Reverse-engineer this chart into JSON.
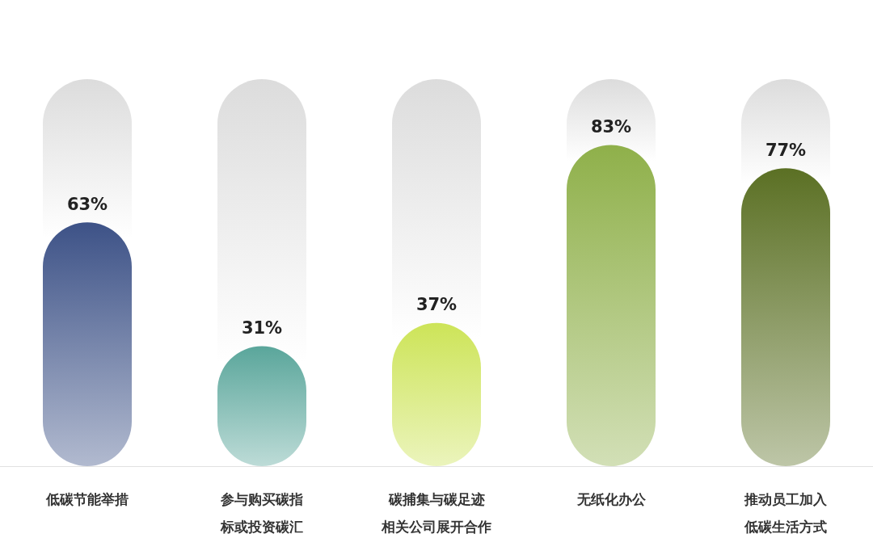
{
  "chart_data": {
    "type": "bar",
    "categories": [
      "低碳节能举措",
      "参与购买碳指标或投资碳汇",
      "碳捕集与碳足迹相关公司展开合作",
      "无纸化办公",
      "推动员工加入低碳生活方式"
    ],
    "values": [
      63,
      31,
      37,
      83,
      77
    ],
    "value_labels": [
      "63%",
      "31%",
      "37%",
      "83%",
      "77%"
    ],
    "colors": [
      "#3d5287",
      "#5aa69b",
      "#cde458",
      "#8fb04a",
      "#5b7024"
    ]
  }
}
